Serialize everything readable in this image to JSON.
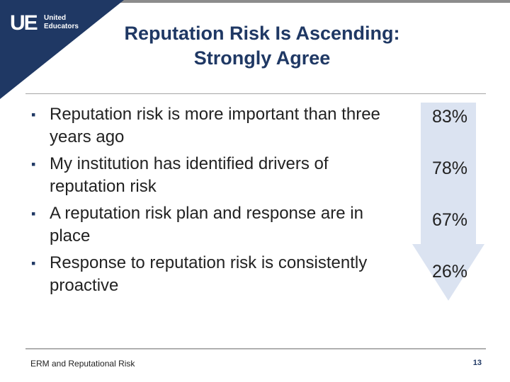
{
  "logo": {
    "mark": "UE",
    "line1": "United",
    "line2": "Educators"
  },
  "title": {
    "line1": "Reputation Risk Is Ascending:",
    "line2": "Strongly Agree"
  },
  "bullets": [
    {
      "text": "Reputation risk is more important than three years ago",
      "value": "83%"
    },
    {
      "text": "My institution has identified drivers of reputation risk",
      "value": "78%"
    },
    {
      "text": "A reputation risk plan and response are in place",
      "value": "67%"
    },
    {
      "text": "Response to reputation risk is consistently proactive",
      "value": "26%"
    }
  ],
  "footer": {
    "label": "ERM and Reputational Risk",
    "page": "13"
  },
  "colors": {
    "navy": "#1f3864",
    "arrow": "#dbe3f1",
    "corner": "#1f3864"
  }
}
